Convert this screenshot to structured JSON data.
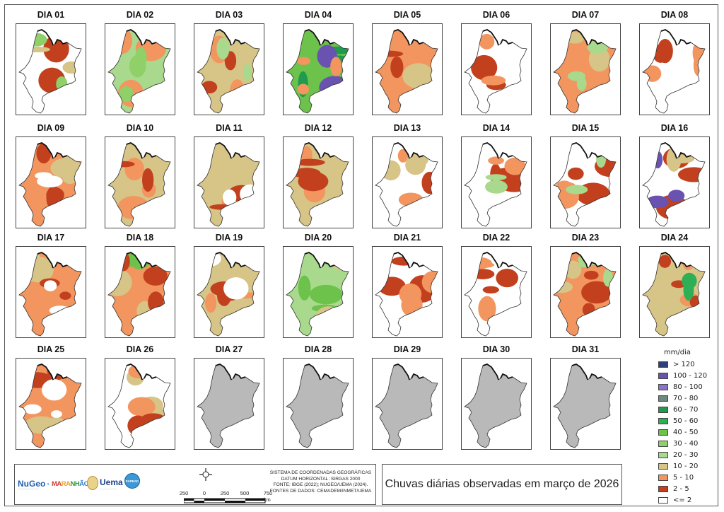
{
  "figure": {
    "title": "Chuvas diárias observadas em março de 2026",
    "region": "Maranhão"
  },
  "legend": {
    "title": "mm/dia",
    "classes": [
      {
        "label": "> 120",
        "color": "#2e3f7c"
      },
      {
        "label": "100 - 120",
        "color": "#6a52b0"
      },
      {
        "label": "80 - 100",
        "color": "#8b73c9"
      },
      {
        "label": "70 - 80",
        "color": "#6e8a80"
      },
      {
        "label": "60 - 70",
        "color": "#1f9a4e"
      },
      {
        "label": "50 - 60",
        "color": "#2eae55"
      },
      {
        "label": "40 - 50",
        "color": "#6cc24a"
      },
      {
        "label": "30 - 40",
        "color": "#8fd068"
      },
      {
        "label": "20 - 30",
        "color": "#a9d98c"
      },
      {
        "label": "10 - 20",
        "color": "#d7c487"
      },
      {
        "label": "5 - 10",
        "color": "#f2955e"
      },
      {
        "label": "2 - 5",
        "color": "#c2401d"
      },
      {
        "label": "<= 2",
        "color": "#ffffff"
      }
    ]
  },
  "panels": [
    {
      "label": "DIA 01",
      "has_data": true,
      "dominant": [
        "<= 2",
        "2 - 5",
        "10 - 20",
        "30 - 40"
      ]
    },
    {
      "label": "DIA 02",
      "has_data": true,
      "dominant": [
        "20 - 30",
        "5 - 10",
        "30 - 40"
      ]
    },
    {
      "label": "DIA 03",
      "has_data": true,
      "dominant": [
        "10 - 20",
        "5 - 10",
        "2 - 5",
        "20 - 30"
      ]
    },
    {
      "label": "DIA 04",
      "has_data": true,
      "dominant": [
        "40 - 50",
        "60 - 70",
        "100 - 120",
        "5 - 10"
      ]
    },
    {
      "label": "DIA 05",
      "has_data": true,
      "dominant": [
        "5 - 10",
        "10 - 20",
        "2 - 5"
      ]
    },
    {
      "label": "DIA 06",
      "has_data": true,
      "dominant": [
        "<= 2",
        "2 - 5",
        "5 - 10"
      ]
    },
    {
      "label": "DIA 07",
      "has_data": true,
      "dominant": [
        "5 - 10",
        "10 - 20",
        "20 - 30"
      ]
    },
    {
      "label": "DIA 08",
      "has_data": true,
      "dominant": [
        "<= 2",
        "2 - 5",
        "5 - 10"
      ]
    },
    {
      "label": "DIA 09",
      "has_data": true,
      "dominant": [
        "5 - 10",
        "10 - 20",
        "2 - 5",
        "<= 2"
      ]
    },
    {
      "label": "DIA 10",
      "has_data": true,
      "dominant": [
        "10 - 20",
        "5 - 10",
        "2 - 5"
      ]
    },
    {
      "label": "DIA 11",
      "has_data": true,
      "dominant": [
        "10 - 20",
        "5 - 10",
        "2 - 5",
        "<= 2"
      ]
    },
    {
      "label": "DIA 12",
      "has_data": true,
      "dominant": [
        "10 - 20",
        "5 - 10",
        "2 - 5"
      ]
    },
    {
      "label": "DIA 13",
      "has_data": true,
      "dominant": [
        "<= 2",
        "2 - 5",
        "5 - 10",
        "10 - 20"
      ]
    },
    {
      "label": "DIA 14",
      "has_data": true,
      "dominant": [
        "<= 2",
        "2 - 5",
        "5 - 10",
        "20 - 30"
      ]
    },
    {
      "label": "DIA 15",
      "has_data": true,
      "dominant": [
        "<= 2",
        "2 - 5",
        "5 - 10",
        "20 - 30"
      ]
    },
    {
      "label": "DIA 16",
      "has_data": true,
      "dominant": [
        "<= 2",
        "2 - 5",
        "10 - 20",
        "100 - 120"
      ]
    },
    {
      "label": "DIA 17",
      "has_data": true,
      "dominant": [
        "5 - 10",
        "10 - 20",
        "2 - 5",
        "<= 2"
      ]
    },
    {
      "label": "DIA 18",
      "has_data": true,
      "dominant": [
        "5 - 10",
        "10 - 20",
        "40 - 50",
        "2 - 5"
      ]
    },
    {
      "label": "DIA 19",
      "has_data": true,
      "dominant": [
        "10 - 20",
        "5 - 10",
        "2 - 5",
        "<= 2"
      ]
    },
    {
      "label": "DIA 20",
      "has_data": true,
      "dominant": [
        "20 - 30",
        "40 - 50",
        "10 - 20"
      ]
    },
    {
      "label": "DIA 21",
      "has_data": true,
      "dominant": [
        "<= 2",
        "2 - 5",
        "5 - 10"
      ]
    },
    {
      "label": "DIA 22",
      "has_data": true,
      "dominant": [
        "<= 2",
        "2 - 5",
        "5 - 10"
      ]
    },
    {
      "label": "DIA 23",
      "has_data": true,
      "dominant": [
        "5 - 10",
        "10 - 20",
        "2 - 5",
        "20 - 30"
      ]
    },
    {
      "label": "DIA 24",
      "has_data": true,
      "dominant": [
        "10 - 20",
        "5 - 10",
        "2 - 5",
        "50 - 60"
      ]
    },
    {
      "label": "DIA 25",
      "has_data": true,
      "dominant": [
        "5 - 10",
        "10 - 20",
        "2 - 5",
        "<= 2"
      ]
    },
    {
      "label": "DIA 26",
      "has_data": true,
      "dominant": [
        "<= 2",
        "10 - 20",
        "5 - 10",
        "2 - 5"
      ]
    },
    {
      "label": "DIA 27",
      "has_data": false,
      "dominant": []
    },
    {
      "label": "DIA 28",
      "has_data": false,
      "dominant": []
    },
    {
      "label": "DIA 29",
      "has_data": false,
      "dominant": []
    },
    {
      "label": "DIA 30",
      "has_data": false,
      "dominant": []
    },
    {
      "label": "DIA 31",
      "has_data": false,
      "dominant": []
    }
  ],
  "no_data_color": "#b9b9b9",
  "info": {
    "logos": [
      "NuGeo",
      "MARANHÃO",
      "Brasão",
      "Uema",
      "FAPEAD"
    ],
    "scale": {
      "labels": [
        "250",
        "0",
        "250",
        "500",
        "750 km"
      ]
    },
    "crs_lines": [
      "SISTEMA DE COORDENADAS GEOGRÁFICAS",
      "DATUM HORIZONTAL: SIRGAS 2000",
      "FONTE: IBGE (2022); NUGEO/UEMA (2024).",
      "FONTES DE DADOS: CEMADEM/INMET/UEMA"
    ]
  }
}
